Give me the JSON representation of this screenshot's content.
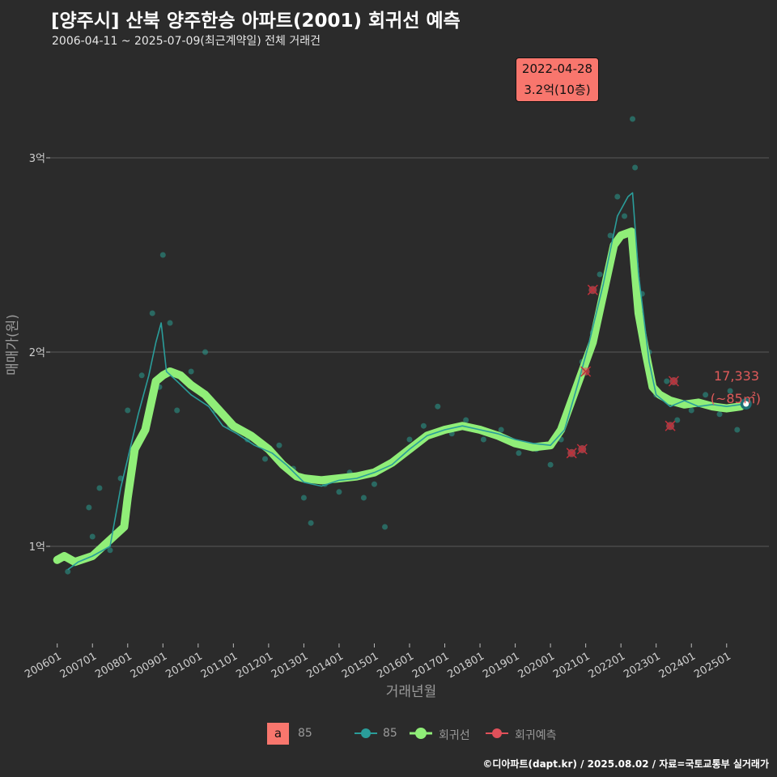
{
  "title": "[양주시] 산북 양주한승 아파트(2001) 회귀선 예측",
  "subtitle": "2006-04-11 ~ 2025-07-09(최근계약일) 전체 거래건",
  "footer": "©디아파트(dapt.kr) / 2025.08.02 / 자료=국토교통부 실거래가",
  "callout": {
    "date": "2022-04-28",
    "value": "3.2억(10층)"
  },
  "end_label": {
    "value": "17,333",
    "area": "(~85㎡)"
  },
  "legend": {
    "a_key": "a",
    "a_label": "85",
    "line_label": "85",
    "reg_label": "회귀선",
    "pred_label": "회귀예측"
  },
  "colors": {
    "background": "#2b2b2b",
    "scatter": "#2a9d8f",
    "line": "#2a9d9a",
    "regression": "#90ee78",
    "prediction": "#e0505a",
    "callout": "#f8766d",
    "grid": "#5a5a5a"
  },
  "chart_data": {
    "type": "line",
    "title": "[양주시] 산북 양주한승 아파트(2001) 회귀선 예측",
    "xlabel": "거래년월",
    "ylabel": "매매가(원)",
    "xlim": [
      2005.8,
      2026.2
    ],
    "ylim": [
      0.5,
      3.5
    ],
    "x_ticks": [
      2006,
      2007,
      2008,
      2009,
      2010,
      2011,
      2012,
      2013,
      2014,
      2015,
      2016,
      2017,
      2018,
      2019,
      2020,
      2021,
      2022,
      2023,
      2024,
      2025
    ],
    "x_tick_labels": [
      "200601",
      "200701",
      "200801",
      "200901",
      "201001",
      "201101",
      "201201",
      "201301",
      "201401",
      "201501",
      "201601",
      "201701",
      "201801",
      "201901",
      "202001",
      "202101",
      "202201",
      "202301",
      "202401",
      "202501"
    ],
    "y_ticks": [
      1,
      2,
      3
    ],
    "y_tick_labels": [
      "1억",
      "2억",
      "3억"
    ],
    "series": [
      {
        "name": "85 (monthly avg)",
        "x": [
          2006.3,
          2006.6,
          2007.0,
          2007.5,
          2007.8,
          2008.0,
          2008.3,
          2008.6,
          2008.8,
          2008.95,
          2009.1,
          2009.4,
          2009.8,
          2010.3,
          2010.7,
          2011.1,
          2011.6,
          2012.1,
          2012.5,
          2013.0,
          2013.5,
          2014.0,
          2014.5,
          2015.0,
          2015.5,
          2016.0,
          2016.5,
          2017.0,
          2017.5,
          2018.0,
          2018.5,
          2019.0,
          2019.5,
          2020.0,
          2020.4,
          2020.8,
          2021.1,
          2021.5,
          2021.9,
          2022.2,
          2022.33,
          2022.5,
          2022.8,
          2023.0,
          2023.4,
          2023.8,
          2024.2,
          2024.6,
          2025.0,
          2025.4
        ],
        "y": [
          0.88,
          0.92,
          0.95,
          1.0,
          1.3,
          1.45,
          1.68,
          1.88,
          2.05,
          2.15,
          1.9,
          1.85,
          1.78,
          1.72,
          1.62,
          1.58,
          1.52,
          1.48,
          1.42,
          1.33,
          1.31,
          1.34,
          1.35,
          1.38,
          1.42,
          1.5,
          1.57,
          1.6,
          1.62,
          1.6,
          1.58,
          1.55,
          1.53,
          1.52,
          1.6,
          1.85,
          2.05,
          2.35,
          2.7,
          2.8,
          2.82,
          2.4,
          1.95,
          1.78,
          1.72,
          1.75,
          1.72,
          1.73,
          1.72,
          1.73
        ]
      },
      {
        "name": "회귀선",
        "x": [
          2006.0,
          2006.2,
          2006.5,
          2007.0,
          2007.3,
          2007.6,
          2007.9,
          2008.0,
          2008.2,
          2008.5,
          2008.8,
          2009.0,
          2009.2,
          2009.5,
          2009.8,
          2010.2,
          2010.6,
          2011.0,
          2011.5,
          2012.0,
          2012.4,
          2012.8,
          2013.0,
          2013.5,
          2014.0,
          2014.5,
          2015.0,
          2015.5,
          2016.0,
          2016.5,
          2017.0,
          2017.5,
          2018.0,
          2018.5,
          2019.0,
          2019.5,
          2020.0,
          2020.3,
          2020.6,
          2020.9,
          2021.2,
          2021.5,
          2021.8,
          2022.0,
          2022.3,
          2022.5,
          2022.7,
          2022.9,
          2023.1,
          2023.4,
          2023.8,
          2024.2,
          2024.6,
          2025.0,
          2025.4
        ],
        "y": [
          0.93,
          0.95,
          0.92,
          0.95,
          1.0,
          1.05,
          1.1,
          1.25,
          1.5,
          1.6,
          1.85,
          1.88,
          1.9,
          1.88,
          1.83,
          1.78,
          1.7,
          1.62,
          1.57,
          1.5,
          1.42,
          1.36,
          1.35,
          1.34,
          1.35,
          1.36,
          1.38,
          1.43,
          1.5,
          1.57,
          1.6,
          1.62,
          1.6,
          1.57,
          1.53,
          1.51,
          1.52,
          1.6,
          1.75,
          1.9,
          2.05,
          2.3,
          2.55,
          2.6,
          2.62,
          2.2,
          2.0,
          1.82,
          1.78,
          1.75,
          1.73,
          1.74,
          1.72,
          1.71,
          1.72
        ]
      }
    ],
    "scatter_points": [
      [
        2006.3,
        0.87
      ],
      [
        2006.9,
        1.2
      ],
      [
        2007.0,
        1.05
      ],
      [
        2007.2,
        1.3
      ],
      [
        2007.5,
        0.98
      ],
      [
        2007.8,
        1.35
      ],
      [
        2008.0,
        1.7
      ],
      [
        2008.4,
        1.88
      ],
      [
        2008.7,
        2.2
      ],
      [
        2008.9,
        1.82
      ],
      [
        2009.0,
        2.5
      ],
      [
        2009.2,
        2.15
      ],
      [
        2009.4,
        1.7
      ],
      [
        2009.8,
        1.9
      ],
      [
        2010.2,
        2.0
      ],
      [
        2010.5,
        1.7
      ],
      [
        2010.9,
        1.62
      ],
      [
        2011.4,
        1.55
      ],
      [
        2011.9,
        1.45
      ],
      [
        2012.3,
        1.52
      ],
      [
        2012.7,
        1.4
      ],
      [
        2013.0,
        1.25
      ],
      [
        2013.2,
        1.12
      ],
      [
        2013.6,
        1.32
      ],
      [
        2014.0,
        1.28
      ],
      [
        2014.3,
        1.38
      ],
      [
        2014.7,
        1.25
      ],
      [
        2015.0,
        1.32
      ],
      [
        2015.3,
        1.1
      ],
      [
        2015.6,
        1.45
      ],
      [
        2016.0,
        1.55
      ],
      [
        2016.4,
        1.62
      ],
      [
        2016.8,
        1.72
      ],
      [
        2017.2,
        1.58
      ],
      [
        2017.6,
        1.65
      ],
      [
        2018.1,
        1.55
      ],
      [
        2018.6,
        1.6
      ],
      [
        2019.1,
        1.48
      ],
      [
        2019.6,
        1.5
      ],
      [
        2020.0,
        1.42
      ],
      [
        2020.3,
        1.55
      ],
      [
        2020.6,
        1.75
      ],
      [
        2020.9,
        1.95
      ],
      [
        2021.2,
        2.1
      ],
      [
        2021.4,
        2.4
      ],
      [
        2021.7,
        2.6
      ],
      [
        2021.9,
        2.8
      ],
      [
        2022.1,
        2.7
      ],
      [
        2022.33,
        3.2
      ],
      [
        2022.4,
        2.95
      ],
      [
        2022.6,
        2.3
      ],
      [
        2022.8,
        2.0
      ],
      [
        2023.0,
        1.78
      ],
      [
        2023.3,
        1.85
      ],
      [
        2023.6,
        1.65
      ],
      [
        2024.0,
        1.7
      ],
      [
        2024.4,
        1.78
      ],
      [
        2024.8,
        1.68
      ],
      [
        2025.1,
        1.8
      ],
      [
        2025.3,
        1.6
      ]
    ],
    "prediction_points": [
      [
        2020.6,
        1.48
      ],
      [
        2020.9,
        1.5
      ],
      [
        2021.0,
        1.9
      ],
      [
        2021.2,
        2.32
      ],
      [
        2023.4,
        1.62
      ],
      [
        2023.5,
        1.85
      ]
    ],
    "annotation": {
      "date": "2022-04-28",
      "text": "3.2억(10층)",
      "x": 2022.33,
      "y": 3.2
    },
    "end_point": {
      "x": 2025.55,
      "y": 1.7333,
      "label": "17,333",
      "area": "(~85㎡)"
    }
  }
}
